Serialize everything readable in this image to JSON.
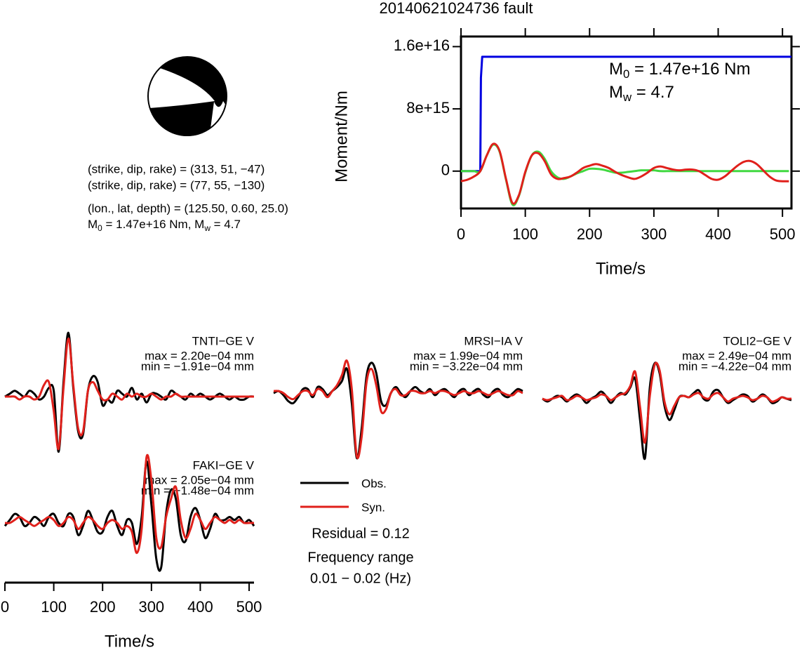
{
  "title": "20140621024736 fault",
  "mechanism": {
    "nodal_planes": [
      "(strike, dip, rake) = (313, 51, −47)",
      "(strike, dip, rake) = (77, 55, −130)"
    ],
    "location": "(lon., lat, depth) = (125.50, 0.60, 25.0)",
    "magnitude_parts": [
      "M",
      "0",
      " = 1.47e+16 Nm, M",
      "w",
      " = 4.7"
    ]
  },
  "notes": {
    "residual": "Residual = 0.12",
    "frequency_label": "Frequency range",
    "frequency_range": "0.01 − 0.02 (Hz)"
  },
  "chart_data": [
    {
      "type": "line",
      "xlabel": "Time/s",
      "ylabel": "Moment/Nm",
      "xlim": [
        0,
        514
      ],
      "ylim": [
        -4800000000000000.0,
        1.73e+16
      ],
      "xticks": [
        0,
        100,
        200,
        300,
        400,
        500
      ],
      "yticks": [
        0,
        {
          "value": 8000000000000000.0,
          "label": "8e+15"
        },
        {
          "value": 1.6e+16,
          "label": "1.6e+16"
        }
      ],
      "annotations": [
        {
          "parts": [
            "M",
            "0",
            " = 1.47e+16 Nm"
          ]
        },
        {
          "parts": [
            "M",
            "w",
            " = 4.7"
          ]
        }
      ],
      "x": [
        0,
        10,
        20,
        30,
        40,
        50,
        60,
        70,
        80,
        90,
        100,
        110,
        120,
        130,
        140,
        150,
        160,
        170,
        180,
        190,
        200,
        210,
        220,
        230,
        240,
        250,
        260,
        270,
        280,
        290,
        300,
        310,
        320,
        330,
        340,
        350,
        360,
        370,
        380,
        390,
        400,
        410,
        420,
        430,
        440,
        450,
        460,
        470,
        480,
        490,
        500,
        510
      ],
      "series": [
        {
          "color": "#0000e0",
          "x": [
            0,
            30,
            31,
            33,
            514
          ],
          "values": [
            0,
            0,
            1.2e+16,
            1.47e+16,
            1.47e+16
          ]
        },
        {
          "color": "#40d840",
          "values": [
            0,
            0,
            0,
            0,
            2000000000000000.0,
            3400000000000000.0,
            2500000000000000.0,
            -1100000000000000.0,
            -4300000000000000.0,
            -3200000000000000.0,
            -200000000000000.0,
            2000000000000000.0,
            2500000000000000.0,
            1600000000000000.0,
            0,
            -800000000000000.0,
            -1000000000000000.0,
            -700000000000000.0,
            -300000000000000.0,
            0,
            300000000000000.0,
            300000000000000.0,
            200000000000000.0,
            0,
            -200000000000000.0,
            -200000000000000.0,
            -100000000000000.0,
            0,
            100000000000000.0,
            100000000000000.0,
            100000000000000.0,
            0,
            0,
            0,
            0,
            0,
            0,
            0,
            0,
            0,
            0,
            0,
            0,
            0,
            0,
            0,
            0,
            0,
            0,
            0,
            0,
            0
          ]
        },
        {
          "color": "#e0201b",
          "values": [
            -1300000000000000.0,
            -1100000000000000.0,
            -700000000000000.0,
            0,
            2000000000000000.0,
            3500000000000000.0,
            2600000000000000.0,
            -1000000000000000.0,
            -4100000000000000.0,
            -3100000000000000.0,
            -100000000000000.0,
            2000000000000000.0,
            2300000000000000.0,
            1300000000000000.0,
            -400000000000000.0,
            -1000000000000000.0,
            -900000000000000.0,
            -700000000000000.0,
            -200000000000000.0,
            400000000000000.0,
            700000000000000.0,
            900000000000000.0,
            700000000000000.0,
            400000000000000.0,
            -100000000000000.0,
            -500000000000000.0,
            -800000000000000.0,
            -1000000000000000.0,
            -700000000000000.0,
            -200000000000000.0,
            400000000000000.0,
            600000000000000.0,
            400000000000000.0,
            200000000000000.0,
            100000000000000.0,
            200000000000000.0,
            200000000000000.0,
            0,
            -500000000000000.0,
            -1000000000000000.0,
            -1100000000000000.0,
            -700000000000000.0,
            0,
            700000000000000.0,
            1200000000000000.0,
            1300000000000000.0,
            900000000000000.0,
            100000000000000.0,
            -700000000000000.0,
            -1200000000000000.0,
            -1300000000000000.0,
            -1300000000000000.0
          ]
        }
      ]
    },
    {
      "type": "line",
      "label": "TNTI−GE V",
      "max_label": "max = 2.20e−04 mm",
      "min_label": "min = −1.91e−04 mm",
      "xlim": [
        0,
        510
      ],
      "ylim": [
        -0.00023,
        0.00023
      ],
      "x": [
        0,
        10,
        20,
        30,
        40,
        50,
        60,
        70,
        80,
        90,
        100,
        110,
        120,
        130,
        140,
        150,
        160,
        170,
        180,
        190,
        200,
        210,
        220,
        230,
        240,
        250,
        260,
        270,
        280,
        290,
        300,
        310,
        320,
        330,
        340,
        350,
        360,
        370,
        380,
        390,
        400,
        410,
        420,
        430,
        440,
        450,
        460,
        470,
        480,
        490,
        500,
        510
      ],
      "series": [
        {
          "color": "#000000",
          "values": [
            0,
            1e-05,
            2e-05,
            1e-05,
            0,
            2e-05,
            1e-05,
            -1e-05,
            0,
            3e-05,
            2e-05,
            -0.00019,
            5e-05,
            0.00022,
            3e-05,
            -0.00012,
            -0.00013,
            2e-05,
            7e-05,
            5e-05,
            -3e-05,
            -1e-05,
            -2e-05,
            2e-05,
            1e-05,
            0,
            3e-05,
            -1e-05,
            1e-05,
            -2e-05,
            1e-05,
            1e-05,
            0,
            -1e-05,
            2e-05,
            1e-05,
            0,
            -1e-05,
            1e-05,
            0,
            1e-05,
            0,
            -1e-05,
            0,
            1e-05,
            0,
            -1e-05,
            0,
            -1e-05,
            -1e-05,
            0,
            0
          ]
        },
        {
          "color": "#e0201b",
          "values": [
            0,
            0,
            0,
            -1e-05,
            0,
            0,
            -1e-05,
            0,
            4e-05,
            5e-05,
            -5e-05,
            -0.00018,
            3e-05,
            0.0002,
            4e-05,
            -0.00011,
            -0.00012,
            2e-05,
            5e-05,
            2e-05,
            -1e-05,
            -1e-05,
            1e-05,
            0,
            -1e-05,
            1e-05,
            0,
            1e-05,
            0,
            0,
            1e-05,
            0,
            -1e-05,
            0,
            0,
            1e-05,
            0,
            0,
            0,
            0,
            0,
            0,
            0,
            0,
            0,
            0,
            0,
            0,
            0,
            0,
            0,
            0
          ]
        }
      ]
    },
    {
      "type": "line",
      "label": "MRSI−IA V",
      "max_label": "max = 1.99e−04 mm",
      "min_label": "min = −3.22e−04 mm",
      "xlim": [
        0,
        510
      ],
      "ylim": [
        -0.00033,
        0.00033
      ],
      "x": [
        0,
        10,
        20,
        30,
        40,
        50,
        60,
        70,
        80,
        90,
        100,
        110,
        120,
        130,
        140,
        150,
        160,
        170,
        180,
        190,
        200,
        210,
        220,
        230,
        240,
        250,
        260,
        270,
        280,
        290,
        300,
        310,
        320,
        330,
        340,
        350,
        360,
        370,
        380,
        390,
        400,
        410,
        420,
        430,
        440,
        450,
        460,
        470,
        480,
        490,
        500,
        510
      ],
      "series": [
        {
          "color": "#000000",
          "values": [
            0,
            1e-05,
            -1e-05,
            -4e-05,
            -5e-05,
            -2e-05,
            2e-05,
            2e-05,
            -2e-05,
            3e-05,
            2e-05,
            -1e-05,
            1e-05,
            3e-05,
            6e-05,
            0.00012,
            -5e-05,
            -0.00032,
            -0.00018,
            8e-05,
            0.00015,
            0.0001,
            -4e-05,
            -6e-05,
            0,
            3e-05,
            0,
            -2e-05,
            1e-05,
            3e-05,
            1e-05,
            0,
            2e-05,
            -1e-05,
            1e-05,
            2e-05,
            0,
            -2e-05,
            1e-05,
            2e-05,
            -1e-05,
            1e-05,
            2e-05,
            -1e-05,
            -2e-05,
            1e-05,
            2e-05,
            -1e-05,
            -2e-05,
            0,
            2e-05,
            1e-05
          ]
        },
        {
          "color": "#e0201b",
          "values": [
            1e-05,
            1e-05,
            0,
            -2e-05,
            -3e-05,
            -1e-05,
            1e-05,
            1e-05,
            -1e-05,
            2e-05,
            1e-05,
            -2e-05,
            1e-05,
            4e-05,
            9e-05,
            0.00016,
            2e-05,
            -0.00031,
            -0.00022,
            5e-05,
            0.00012,
            4e-05,
            -9e-05,
            -8e-05,
            0,
            2e-05,
            -1e-05,
            -1e-05,
            1e-05,
            1e-05,
            0,
            0,
            1e-05,
            0,
            1e-05,
            1e-05,
            0,
            -1e-05,
            0,
            1e-05,
            0,
            0,
            1e-05,
            0,
            -1e-05,
            0,
            1e-05,
            0,
            -1e-05,
            -1e-05,
            1e-05,
            0
          ]
        }
      ]
    },
    {
      "type": "line",
      "label": "TOLI2−GE V",
      "max_label": "max = 2.49e−04 mm",
      "min_label": "min = −4.22e−04 mm",
      "xlim": [
        0,
        510
      ],
      "ylim": [
        -0.00047,
        0.00047
      ],
      "x": [
        0,
        10,
        20,
        30,
        40,
        50,
        60,
        70,
        80,
        90,
        100,
        110,
        120,
        130,
        140,
        150,
        160,
        170,
        180,
        190,
        200,
        210,
        220,
        230,
        240,
        250,
        260,
        270,
        280,
        290,
        300,
        310,
        320,
        330,
        340,
        350,
        360,
        370,
        380,
        390,
        400,
        410,
        420,
        430,
        440,
        450,
        460,
        470,
        480,
        490,
        500,
        510
      ],
      "series": [
        {
          "color": "#000000",
          "values": [
            0,
            -2e-05,
            0,
            2e-05,
            1e-05,
            -2e-05,
            1e-05,
            3e-05,
            1e-05,
            -3e-05,
            0,
            2e-05,
            5e-05,
            2e-05,
            -3e-05,
            1e-05,
            4e-05,
            3e-05,
            8e-05,
            0.00014,
            -0.00015,
            -0.00042,
            8e-05,
            0.00025,
            0.00018,
            -5e-05,
            -0.00015,
            -8e-05,
            1e-05,
            2e-05,
            1e-05,
            4e-05,
            6e-05,
            0,
            -1e-05,
            5e-05,
            6e-05,
            1e-05,
            -3e-05,
            -1e-05,
            1e-05,
            3e-05,
            2e-05,
            -2e-05,
            0,
            3e-05,
            1e-05,
            -3e-05,
            -2e-05,
            1e-05,
            0,
            -1e-05
          ]
        },
        {
          "color": "#e0201b",
          "values": [
            0,
            -1e-05,
            0,
            1e-05,
            2e-05,
            -1e-05,
            0,
            2e-05,
            1e-05,
            -1e-05,
            0,
            1e-05,
            3e-05,
            2e-05,
            -1e-05,
            1e-05,
            3e-05,
            4e-05,
            9e-05,
            0.00019,
            -6e-05,
            -0.00031,
            2e-05,
            0.00024,
            0.0002,
            -2e-05,
            -0.00011,
            -5e-05,
            1e-05,
            2e-05,
            1e-05,
            3e-05,
            4e-05,
            1e-05,
            0,
            3e-05,
            4e-05,
            1e-05,
            -2e-05,
            0,
            1e-05,
            2e-05,
            1e-05,
            -1e-05,
            0,
            2e-05,
            1e-05,
            -2e-05,
            -1e-05,
            1e-05,
            0,
            0
          ]
        }
      ]
    },
    {
      "type": "line",
      "label": "FAKI−GE V",
      "max_label": "max = 2.05e−04 mm",
      "min_label": "min = −1.48e−04 mm",
      "xlabel": "Time/s",
      "xlim": [
        0,
        510
      ],
      "ylim": [
        -0.00022,
        0.00022
      ],
      "xticks": [
        0,
        100,
        200,
        300,
        400,
        500
      ],
      "x": [
        0,
        10,
        20,
        30,
        40,
        50,
        60,
        70,
        80,
        90,
        100,
        110,
        120,
        130,
        140,
        150,
        160,
        170,
        180,
        190,
        200,
        210,
        220,
        230,
        240,
        250,
        260,
        270,
        280,
        290,
        300,
        310,
        320,
        330,
        340,
        350,
        360,
        370,
        380,
        390,
        400,
        410,
        420,
        430,
        440,
        450,
        460,
        470,
        480,
        490,
        500,
        510
      ],
      "series": [
        {
          "name": "Obs.",
          "color": "#000000",
          "values": [
            -1e-05,
            1e-05,
            3e-05,
            2e-05,
            -1e-05,
            0,
            2e-05,
            1e-05,
            -1e-05,
            2e-05,
            3e-05,
            0,
            -1e-05,
            3e-05,
            2e-05,
            -4e-05,
            -1e-05,
            4e-05,
            1e-05,
            -3e-05,
            -3e-05,
            2e-05,
            4e-05,
            -1e-05,
            -4e-05,
            1e-05,
            0,
            -7e-05,
            2e-05,
            0.000205,
            6e-05,
            -0.00012,
            -0.000148,
            3e-05,
            0.00011,
            8e-05,
            -4e-05,
            -6e-05,
            2e-05,
            5e-05,
            1e-05,
            -5e-05,
            -2e-05,
            3e-05,
            1e-05,
            1e-05,
            2e-05,
            1e-05,
            2e-05,
            0,
            1e-05,
            -1e-05
          ]
        },
        {
          "name": "Syn.",
          "color": "#e0201b",
          "values": [
            0,
            0,
            1e-05,
            2e-05,
            1e-05,
            0,
            -1e-05,
            0,
            1e-05,
            2e-05,
            1e-05,
            -1e-05,
            0,
            2e-05,
            1e-05,
            -2e-05,
            0,
            2e-05,
            1e-05,
            -1e-05,
            -2e-05,
            0,
            1e-05,
            0,
            -2e-05,
            -1e-05,
            -3e-05,
            -0.0001,
            -2e-05,
            0.00022,
            0.00014,
            -5e-05,
            -8e-05,
            2e-05,
            8e-05,
            0.00012,
            1e-05,
            -5e-05,
            -2e-05,
            3e-05,
            1e-05,
            -2e-05,
            0,
            2e-05,
            1e-05,
            0,
            1e-05,
            0,
            1e-05,
            0,
            0,
            0
          ]
        }
      ]
    }
  ]
}
